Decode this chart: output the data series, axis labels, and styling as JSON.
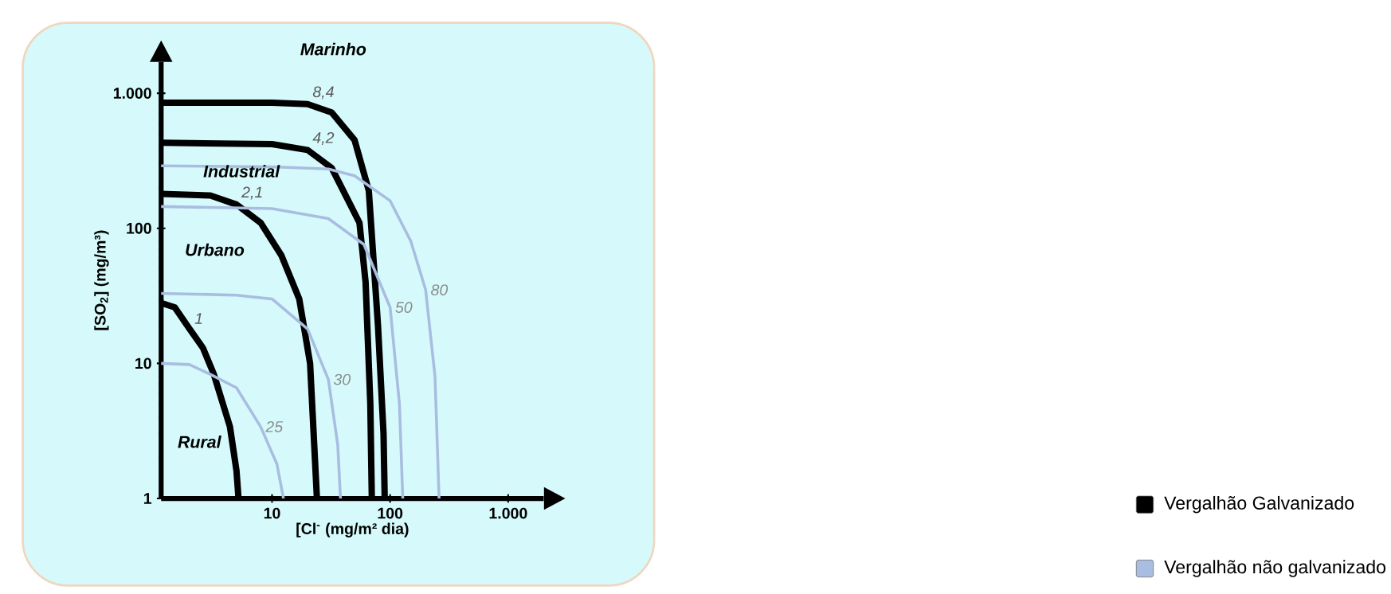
{
  "chart_data": {
    "type": "line",
    "xlabel": "[Cl$^{-}$ (mg/m² dia)",
    "ylabel": "[SO$_{2}$] (mg/m³)",
    "log": "xy",
    "xlim": [
      1.15,
      2000
    ],
    "ylim": [
      1,
      1700
    ],
    "xticks": [
      {
        "value": 10,
        "label": "10"
      },
      {
        "value": 100,
        "label": "100"
      },
      {
        "value": 1000,
        "label": "1.000"
      }
    ],
    "yticks": [
      {
        "value": 1,
        "label": "1"
      },
      {
        "value": 10,
        "label": "10"
      },
      {
        "value": 100,
        "label": "100"
      },
      {
        "value": 1000,
        "label": "1.000"
      }
    ],
    "series": [
      {
        "name": "8,4",
        "color": "#000000",
        "x": [
          1.15,
          10,
          20,
          32,
          50,
          66,
          79,
          88,
          90
        ],
        "values": [
          850,
          850,
          830,
          720,
          450,
          190,
          19,
          3,
          1
        ]
      },
      {
        "name": "4,2",
        "color": "#000000",
        "x": [
          1.15,
          10,
          20,
          32,
          55,
          62,
          68,
          70
        ],
        "values": [
          430,
          420,
          380,
          280,
          110,
          40,
          5,
          1
        ]
      },
      {
        "name": "2,1",
        "color": "#000000",
        "x": [
          1.15,
          3,
          5,
          8,
          12,
          17,
          21,
          24
        ],
        "values": [
          180,
          175,
          150,
          110,
          63,
          30,
          10,
          1
        ]
      },
      {
        "name": "1",
        "color": "#000000",
        "x": [
          1.15,
          1.5,
          2,
          2.6,
          3.2,
          4.4,
          5,
          5.2
        ],
        "values": [
          28,
          26,
          18,
          13,
          8.4,
          3.4,
          1.6,
          1
        ]
      },
      {
        "name": "80",
        "color": "#a9bde0",
        "x": [
          1.15,
          10,
          30,
          50,
          100,
          150,
          200,
          240,
          260
        ],
        "values": [
          290,
          285,
          275,
          245,
          160,
          80,
          35,
          8,
          1
        ]
      },
      {
        "name": "50",
        "color": "#a9bde0",
        "x": [
          1.15,
          10,
          30,
          60,
          100,
          120,
          128
        ],
        "values": [
          145,
          140,
          118,
          76,
          26,
          5,
          1
        ]
      },
      {
        "name": "30",
        "color": "#a9bde0",
        "x": [
          1.15,
          5,
          10,
          20,
          30,
          36,
          38
        ],
        "values": [
          33,
          32,
          30,
          18,
          7.6,
          2.5,
          1
        ]
      },
      {
        "name": "25",
        "color": "#a9bde0",
        "x": [
          1.15,
          2,
          3,
          5,
          8,
          11,
          12.5
        ],
        "values": [
          10,
          9.8,
          8.3,
          6.6,
          3.4,
          1.8,
          1
        ]
      }
    ],
    "annotations": [
      "Marinho",
      "Industrial",
      "Urbano",
      "Rural",
      "Vergalhão Galvanizado",
      "Vergalhão não galvanizado"
    ]
  }
}
